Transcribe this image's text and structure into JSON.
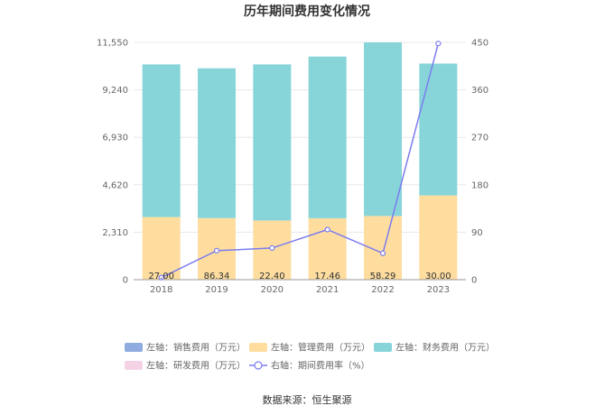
{
  "title": "历年期间费用变化情况",
  "source": "数据来源：恒生聚源",
  "colors": {
    "sales": "#8eacdf",
    "mgmt": "#fedd9f",
    "finance": "#87d5d9",
    "rd": "#f4d3e7",
    "rate": "#7b7cf0",
    "grid": "#e8e8e8",
    "axis": "#999999"
  },
  "legend": [
    {
      "key": "sales",
      "label": "左轴：销售费用（万元）",
      "kind": "rect"
    },
    {
      "key": "mgmt",
      "label": "左轴：管理费用（万元）",
      "kind": "rect"
    },
    {
      "key": "finance",
      "label": "左轴：财务费用（万元）",
      "kind": "rect"
    },
    {
      "key": "rd",
      "label": "左轴：研发费用（万元）",
      "kind": "rect"
    },
    {
      "key": "rate",
      "label": "右轴：期间费用率（%）",
      "kind": "line"
    }
  ],
  "chart_data": {
    "type": "bar",
    "stacked": true,
    "categories": [
      "2018",
      "2019",
      "2020",
      "2021",
      "2022",
      "2023"
    ],
    "y_left": {
      "ticks": [
        "0",
        "2,310",
        "4,620",
        "6,930",
        "9,240",
        "11,550"
      ],
      "lim": [
        0,
        11550
      ]
    },
    "y_right": {
      "ticks": [
        "0",
        "90",
        "180",
        "270",
        "360",
        "450"
      ],
      "lim": [
        0,
        450
      ]
    },
    "series": [
      {
        "key": "sales",
        "name": "左轴：销售费用（万元）",
        "values": [
          0,
          0,
          0,
          0,
          0,
          0
        ]
      },
      {
        "key": "mgmt",
        "name": "左轴：管理费用（万元）",
        "values": [
          3050,
          3000,
          2880,
          2990,
          3100,
          4100
        ]
      },
      {
        "key": "finance",
        "name": "左轴：财务费用（万元）",
        "values": [
          7430,
          7290,
          7600,
          7870,
          8450,
          6420
        ]
      },
      {
        "key": "rd",
        "name": "左轴：研发费用（万元）",
        "values": [
          0,
          0,
          0,
          0,
          0,
          0
        ]
      }
    ],
    "line": {
      "key": "rate",
      "name": "右轴：期间费用率（%）",
      "values": [
        4,
        55,
        60,
        95,
        50,
        448
      ]
    },
    "data_labels": [
      "27.00",
      "86.34",
      "22.40",
      "17.46",
      "58.29",
      "30.00"
    ]
  }
}
